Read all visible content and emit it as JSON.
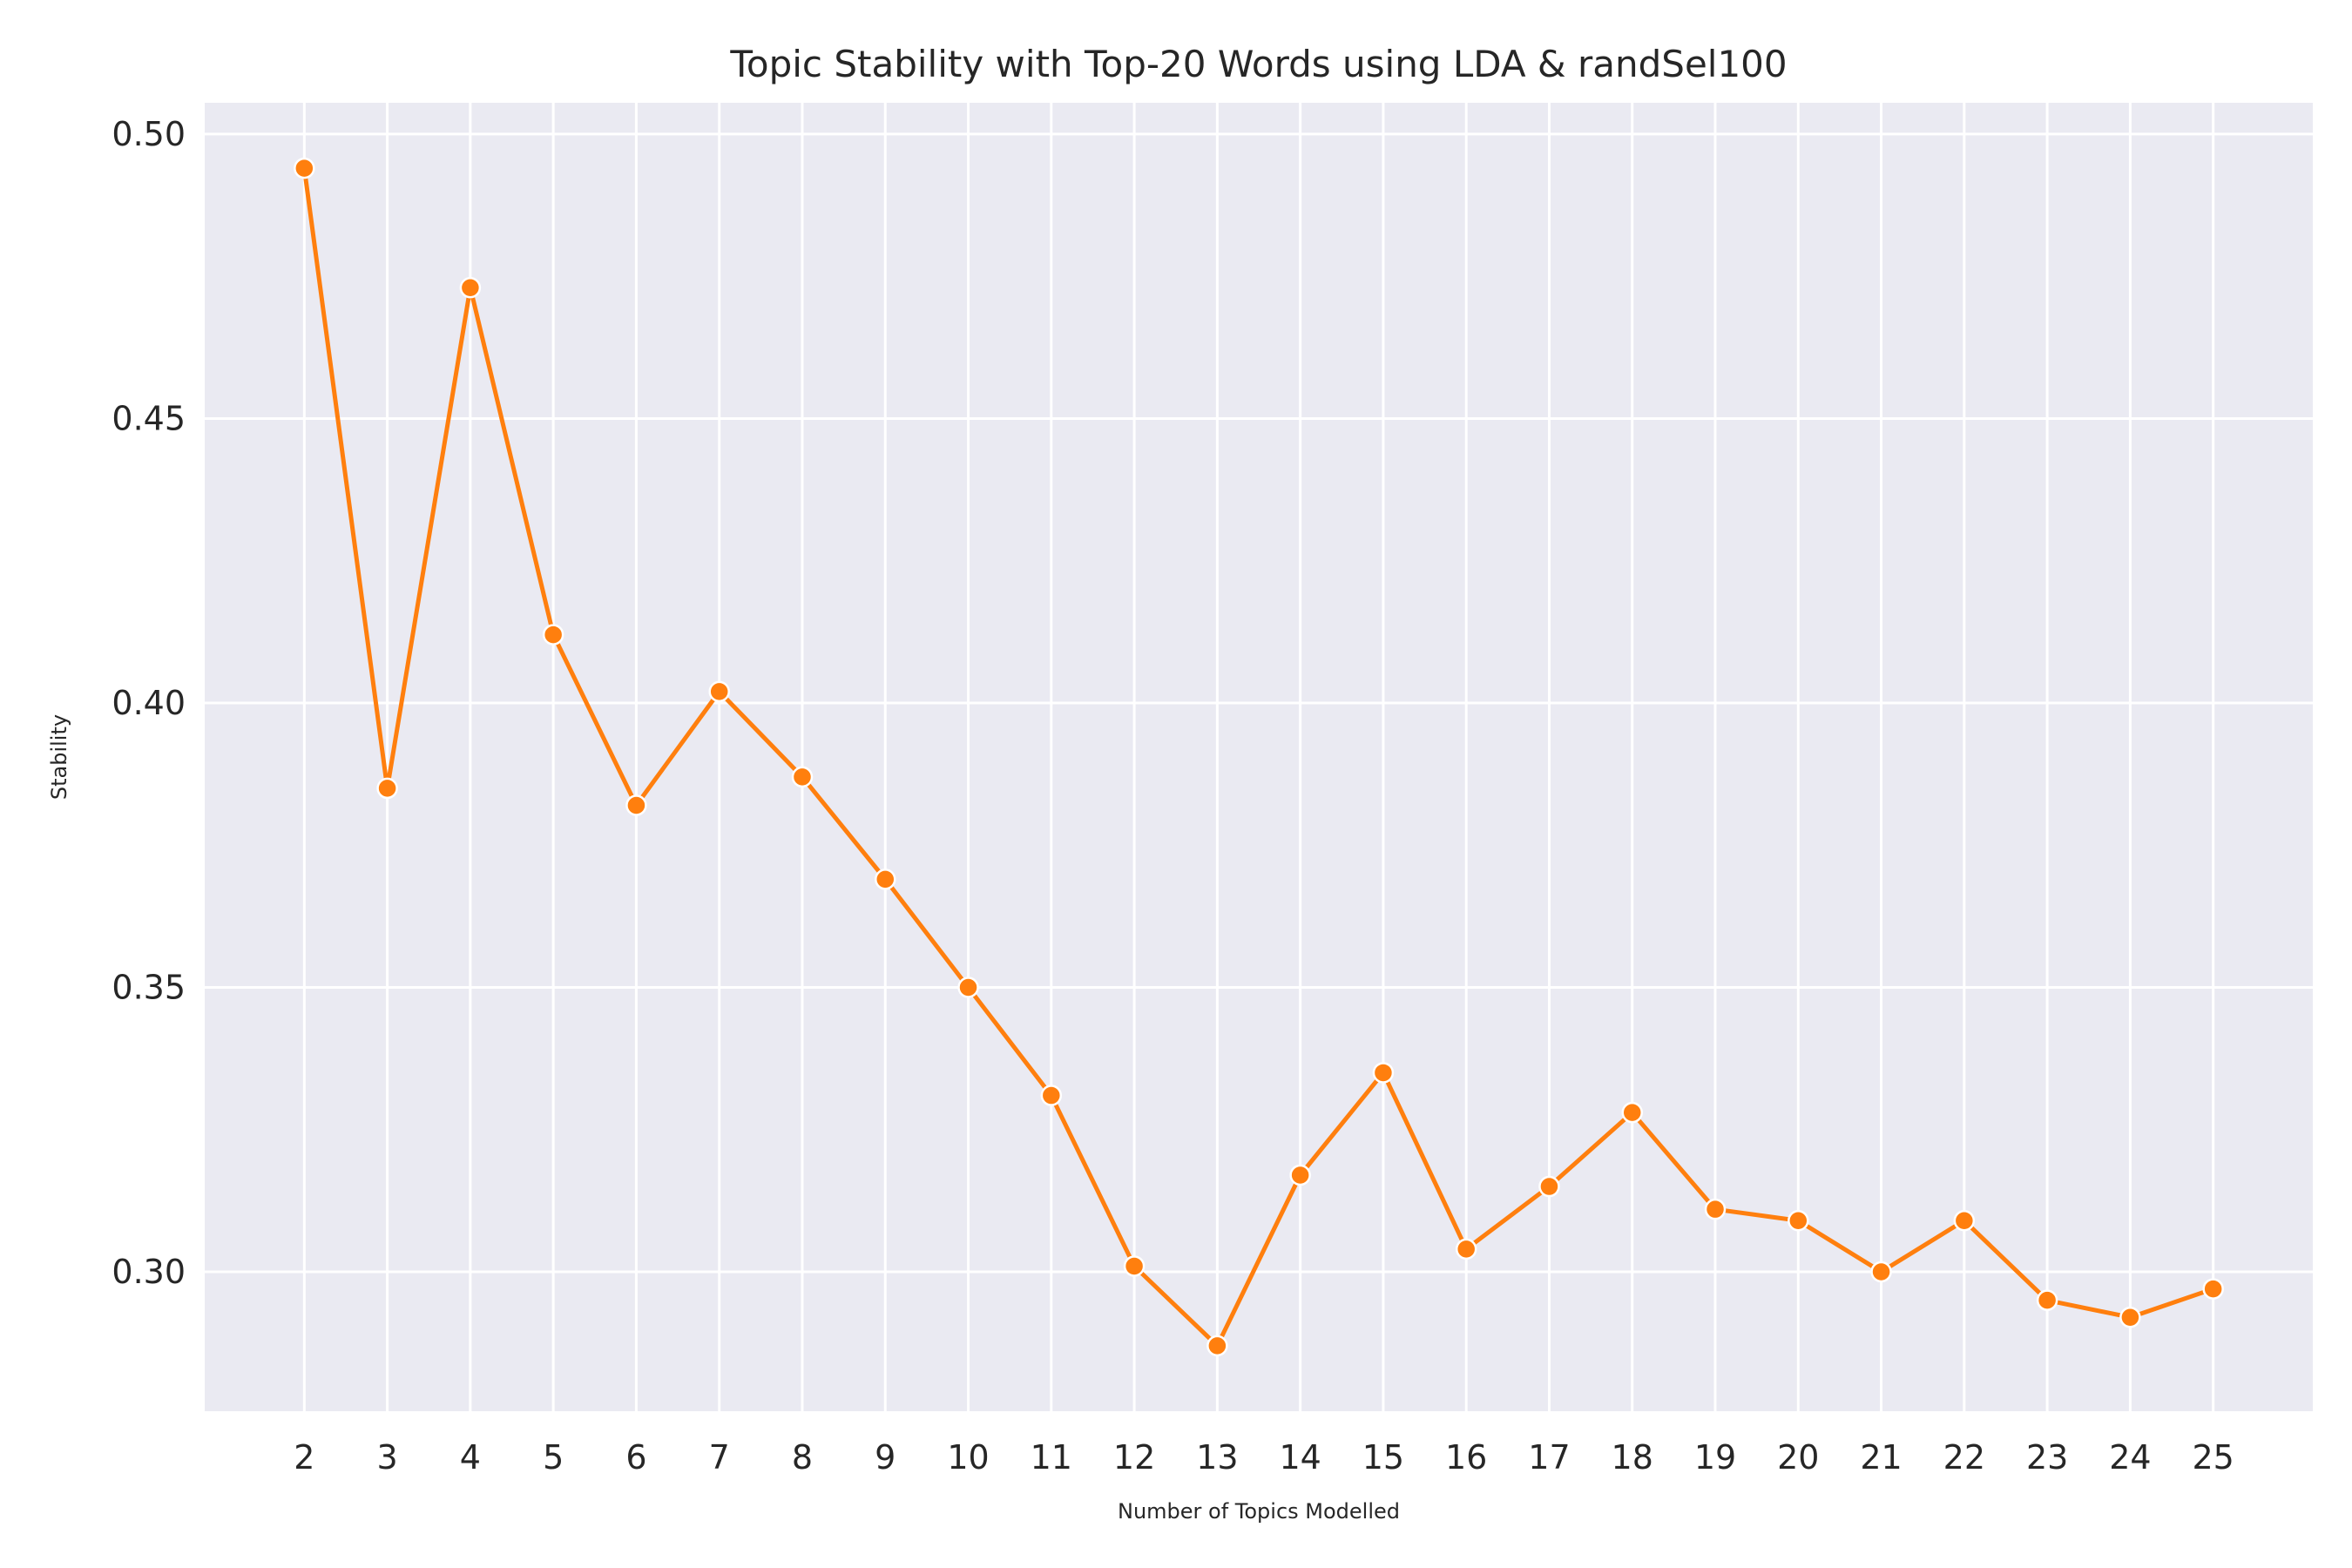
{
  "chart_data": {
    "type": "line",
    "title": "Topic Stability with Top-20 Words using LDA & randSel100",
    "xlabel": "Number of Topics Modelled",
    "ylabel": "Stability",
    "x": [
      2,
      3,
      4,
      5,
      6,
      7,
      8,
      9,
      10,
      11,
      12,
      13,
      14,
      15,
      16,
      17,
      18,
      19,
      20,
      21,
      22,
      23,
      24,
      25
    ],
    "series": [
      {
        "values": [
          0.494,
          0.385,
          0.473,
          0.412,
          0.382,
          0.402,
          0.387,
          0.369,
          0.35,
          0.331,
          0.301,
          0.287,
          0.317,
          0.335,
          0.304,
          0.315,
          0.328,
          0.311,
          0.309,
          0.3,
          0.309,
          0.295,
          0.292,
          0.297
        ],
        "color": "#ff7f0e"
      }
    ],
    "xlim": [
      0.8,
      26.2
    ],
    "ylim": [
      0.2755,
      0.5055
    ],
    "yticks": [
      "0.30",
      "0.35",
      "0.40",
      "0.45",
      "0.50"
    ],
    "xticks": [
      "2",
      "3",
      "4",
      "5",
      "6",
      "7",
      "8",
      "9",
      "10",
      "11",
      "12",
      "13",
      "14",
      "15",
      "16",
      "17",
      "18",
      "19",
      "20",
      "21",
      "22",
      "23",
      "24",
      "25"
    ],
    "grid": true,
    "background": "#eaeaf2",
    "grid_color": "#ffffff"
  }
}
